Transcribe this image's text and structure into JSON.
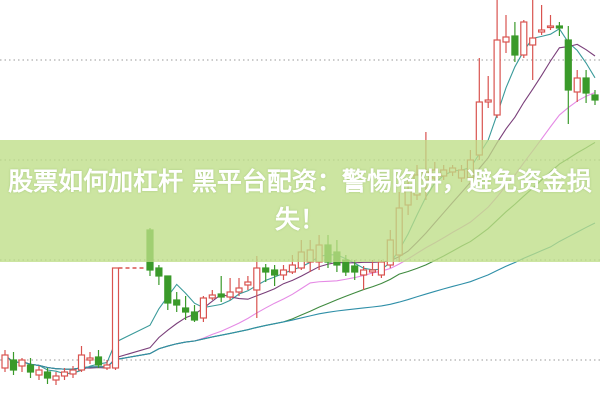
{
  "title": "股票如何加杠杆 黑平台配资：警惕陷阱，避免资金损失！",
  "colors": {
    "up": "#d9534f",
    "down": "#3a9a2a",
    "banner": "#cde5a0",
    "grid": "#999999",
    "ma": [
      "#3a9a9a",
      "#7a3f7a",
      "#e58ae5",
      "#3f8a3f",
      "#2f8fa8"
    ]
  },
  "chart_data": {
    "type": "candlestick",
    "grid": true,
    "gridlines": [
      34,
      24,
      14,
      4
    ],
    "ylim": [
      0,
      40
    ],
    "moving_averages": [
      5,
      10,
      20,
      30,
      60
    ],
    "candles": [
      [
        3.2,
        4.5,
        5.0,
        2.8
      ],
      [
        4.0,
        3.0,
        4.8,
        2.5
      ],
      [
        3.4,
        4.0,
        4.2,
        2.8
      ],
      [
        3.5,
        2.8,
        4.2,
        2.2
      ],
      [
        2.5,
        3.0,
        3.4,
        2.0
      ],
      [
        2.8,
        2.2,
        3.2,
        1.6
      ],
      [
        2.0,
        2.4,
        2.8,
        1.5
      ],
      [
        2.4,
        2.8,
        3.2,
        2.0
      ],
      [
        2.6,
        3.0,
        3.4,
        2.2
      ],
      [
        3.0,
        4.5,
        5.4,
        2.8
      ],
      [
        4.0,
        4.2,
        4.8,
        3.6
      ],
      [
        4.3,
        3.5,
        5.0,
        3.2
      ],
      [
        3.2,
        3.5,
        4.0,
        3.0
      ],
      [
        3.2,
        13.2,
        13.2,
        3.0
      ],
      [
        17.0,
        13.0,
        17.2,
        12.4
      ],
      [
        13.2,
        12.4,
        13.5,
        11.5
      ],
      [
        12.4,
        9.7,
        12.4,
        9.0
      ],
      [
        10.0,
        9.5,
        10.8,
        8.8
      ],
      [
        9.2,
        8.8,
        10.4,
        8.0
      ],
      [
        8.8,
        8.0,
        9.5,
        7.8
      ],
      [
        8.2,
        10.2,
        10.4,
        7.8
      ],
      [
        10.2,
        10.5,
        11.0,
        10.0
      ],
      [
        10.6,
        10.3,
        12.4,
        9.8
      ],
      [
        10.3,
        10.8,
        12.2,
        10.0
      ],
      [
        10.8,
        11.2,
        12.2,
        10.4
      ],
      [
        11.5,
        11.8,
        12.4,
        11.0
      ],
      [
        11.0,
        13.2,
        14.4,
        8.2
      ],
      [
        13.2,
        12.8,
        13.6,
        11.8
      ],
      [
        13.0,
        12.5,
        13.5,
        11.4
      ],
      [
        12.5,
        13.0,
        13.5,
        12.0
      ],
      [
        12.8,
        13.5,
        14.5,
        12.6
      ],
      [
        13.2,
        14.8,
        16.0,
        13.0
      ],
      [
        13.8,
        15.0,
        16.0,
        12.8
      ],
      [
        13.8,
        15.5,
        16.5,
        13.0
      ],
      [
        15.5,
        13.8,
        16.5,
        13.2
      ],
      [
        14.8,
        13.5,
        16.0,
        12.8
      ],
      [
        14.0,
        12.8,
        14.5,
        12.4
      ],
      [
        13.4,
        12.8,
        14.0,
        12.0
      ],
      [
        12.5,
        13.0,
        13.4,
        11.0
      ],
      [
        12.8,
        13.0,
        14.0,
        12.4
      ],
      [
        12.5,
        13.8,
        14.0,
        12.2
      ],
      [
        13.5,
        16.0,
        17.0,
        13.2
      ],
      [
        14.5,
        19.2,
        20.8,
        13.8
      ],
      [
        19.5,
        21.0,
        22.0,
        18.5
      ],
      [
        20.5,
        22.5,
        23.5,
        20.0
      ],
      [
        22.0,
        22.8,
        26.8,
        20.0
      ],
      [
        22.2,
        23.0,
        23.8,
        21.8
      ],
      [
        22.4,
        23.0,
        23.5,
        22.0
      ],
      [
        22.8,
        23.2,
        23.5,
        22.4
      ],
      [
        22.2,
        23.0,
        23.5,
        21.8
      ],
      [
        22.2,
        24.0,
        25.0,
        21.5
      ],
      [
        24.5,
        29.8,
        34.2,
        24.0
      ],
      [
        29.8,
        30.0,
        32.4,
        29.2
      ],
      [
        28.5,
        36.0,
        40.0,
        28.2
      ],
      [
        35.8,
        36.3,
        38.5,
        34.7
      ],
      [
        36.4,
        34.5,
        37.8,
        33.8
      ],
      [
        34.5,
        37.8,
        38.0,
        34.2
      ],
      [
        35.5,
        36.2,
        40.0,
        32.0
      ],
      [
        36.8,
        37.0,
        39.5,
        36.5
      ],
      [
        37.3,
        37.4,
        38.5,
        37.0
      ],
      [
        37.4,
        37.2,
        37.8,
        36.4
      ],
      [
        36.0,
        31.0,
        37.4,
        27.6
      ],
      [
        30.8,
        32.2,
        33.0,
        29.8
      ],
      [
        32.2,
        30.7,
        33.0,
        29.7
      ],
      [
        30.5,
        30.0,
        31.0,
        29.5
      ]
    ]
  }
}
